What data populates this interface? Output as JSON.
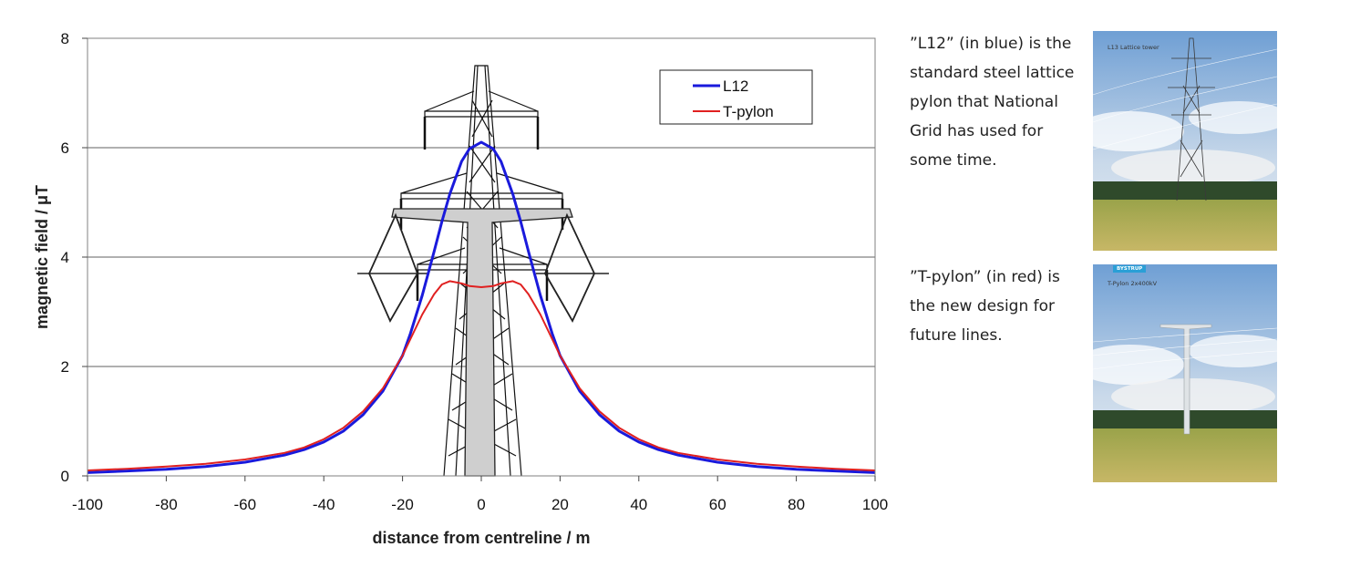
{
  "chart_data": {
    "type": "line",
    "title": "",
    "xlabel": "distance from centreline / m",
    "ylabel": "magnetic field / μT",
    "xlim": [
      -100,
      100
    ],
    "ylim": [
      0,
      8
    ],
    "x_ticks": [
      "-100",
      "-80",
      "-60",
      "-40",
      "-20",
      "0",
      "20",
      "40",
      "60",
      "80",
      "100"
    ],
    "y_ticks": [
      "0",
      "2",
      "4",
      "6",
      "8"
    ],
    "grid": "horizontal",
    "legend_position": "top-right",
    "x": [
      -100,
      -90,
      -80,
      -70,
      -60,
      -50,
      -45,
      -40,
      -35,
      -30,
      -25,
      -20,
      -18,
      -15,
      -12,
      -10,
      -8,
      -5,
      -3,
      0,
      3,
      5,
      8,
      10,
      12,
      15,
      18,
      20,
      25,
      30,
      35,
      40,
      45,
      50,
      60,
      70,
      80,
      90,
      100
    ],
    "series": [
      {
        "name": "L12",
        "color": "#1a1adc",
        "values": [
          0.06,
          0.09,
          0.12,
          0.17,
          0.25,
          0.38,
          0.48,
          0.62,
          0.82,
          1.12,
          1.55,
          2.2,
          2.6,
          3.3,
          4.1,
          4.65,
          5.15,
          5.75,
          5.98,
          6.1,
          5.98,
          5.75,
          5.15,
          4.65,
          4.1,
          3.3,
          2.6,
          2.2,
          1.55,
          1.12,
          0.82,
          0.62,
          0.48,
          0.38,
          0.25,
          0.17,
          0.12,
          0.09,
          0.06
        ]
      },
      {
        "name": "T-pylon",
        "color": "#e02020",
        "values": [
          0.1,
          0.13,
          0.17,
          0.22,
          0.3,
          0.42,
          0.52,
          0.67,
          0.88,
          1.18,
          1.6,
          2.2,
          2.5,
          2.95,
          3.32,
          3.5,
          3.56,
          3.52,
          3.47,
          3.45,
          3.47,
          3.52,
          3.56,
          3.5,
          3.32,
          2.95,
          2.5,
          2.2,
          1.6,
          1.18,
          0.88,
          0.67,
          0.52,
          0.42,
          0.3,
          0.22,
          0.17,
          0.13,
          0.1
        ]
      }
    ]
  },
  "captions": {
    "l12": "”L12” (in blue) is the standard steel lattice pylon  that National Grid has used for some time.",
    "t_pylon": "”T-pylon” (in red) is the new design for future lines."
  },
  "photos": {
    "l12_caption": "L13 Lattice tower",
    "t_caption": "T-Pylon 2x400kV",
    "t_brand": "BYSTRUP"
  },
  "colors": {
    "l12": "#1a1adc",
    "t_pylon": "#e02020",
    "gridline": "#808080",
    "plot_border": "#808080"
  }
}
